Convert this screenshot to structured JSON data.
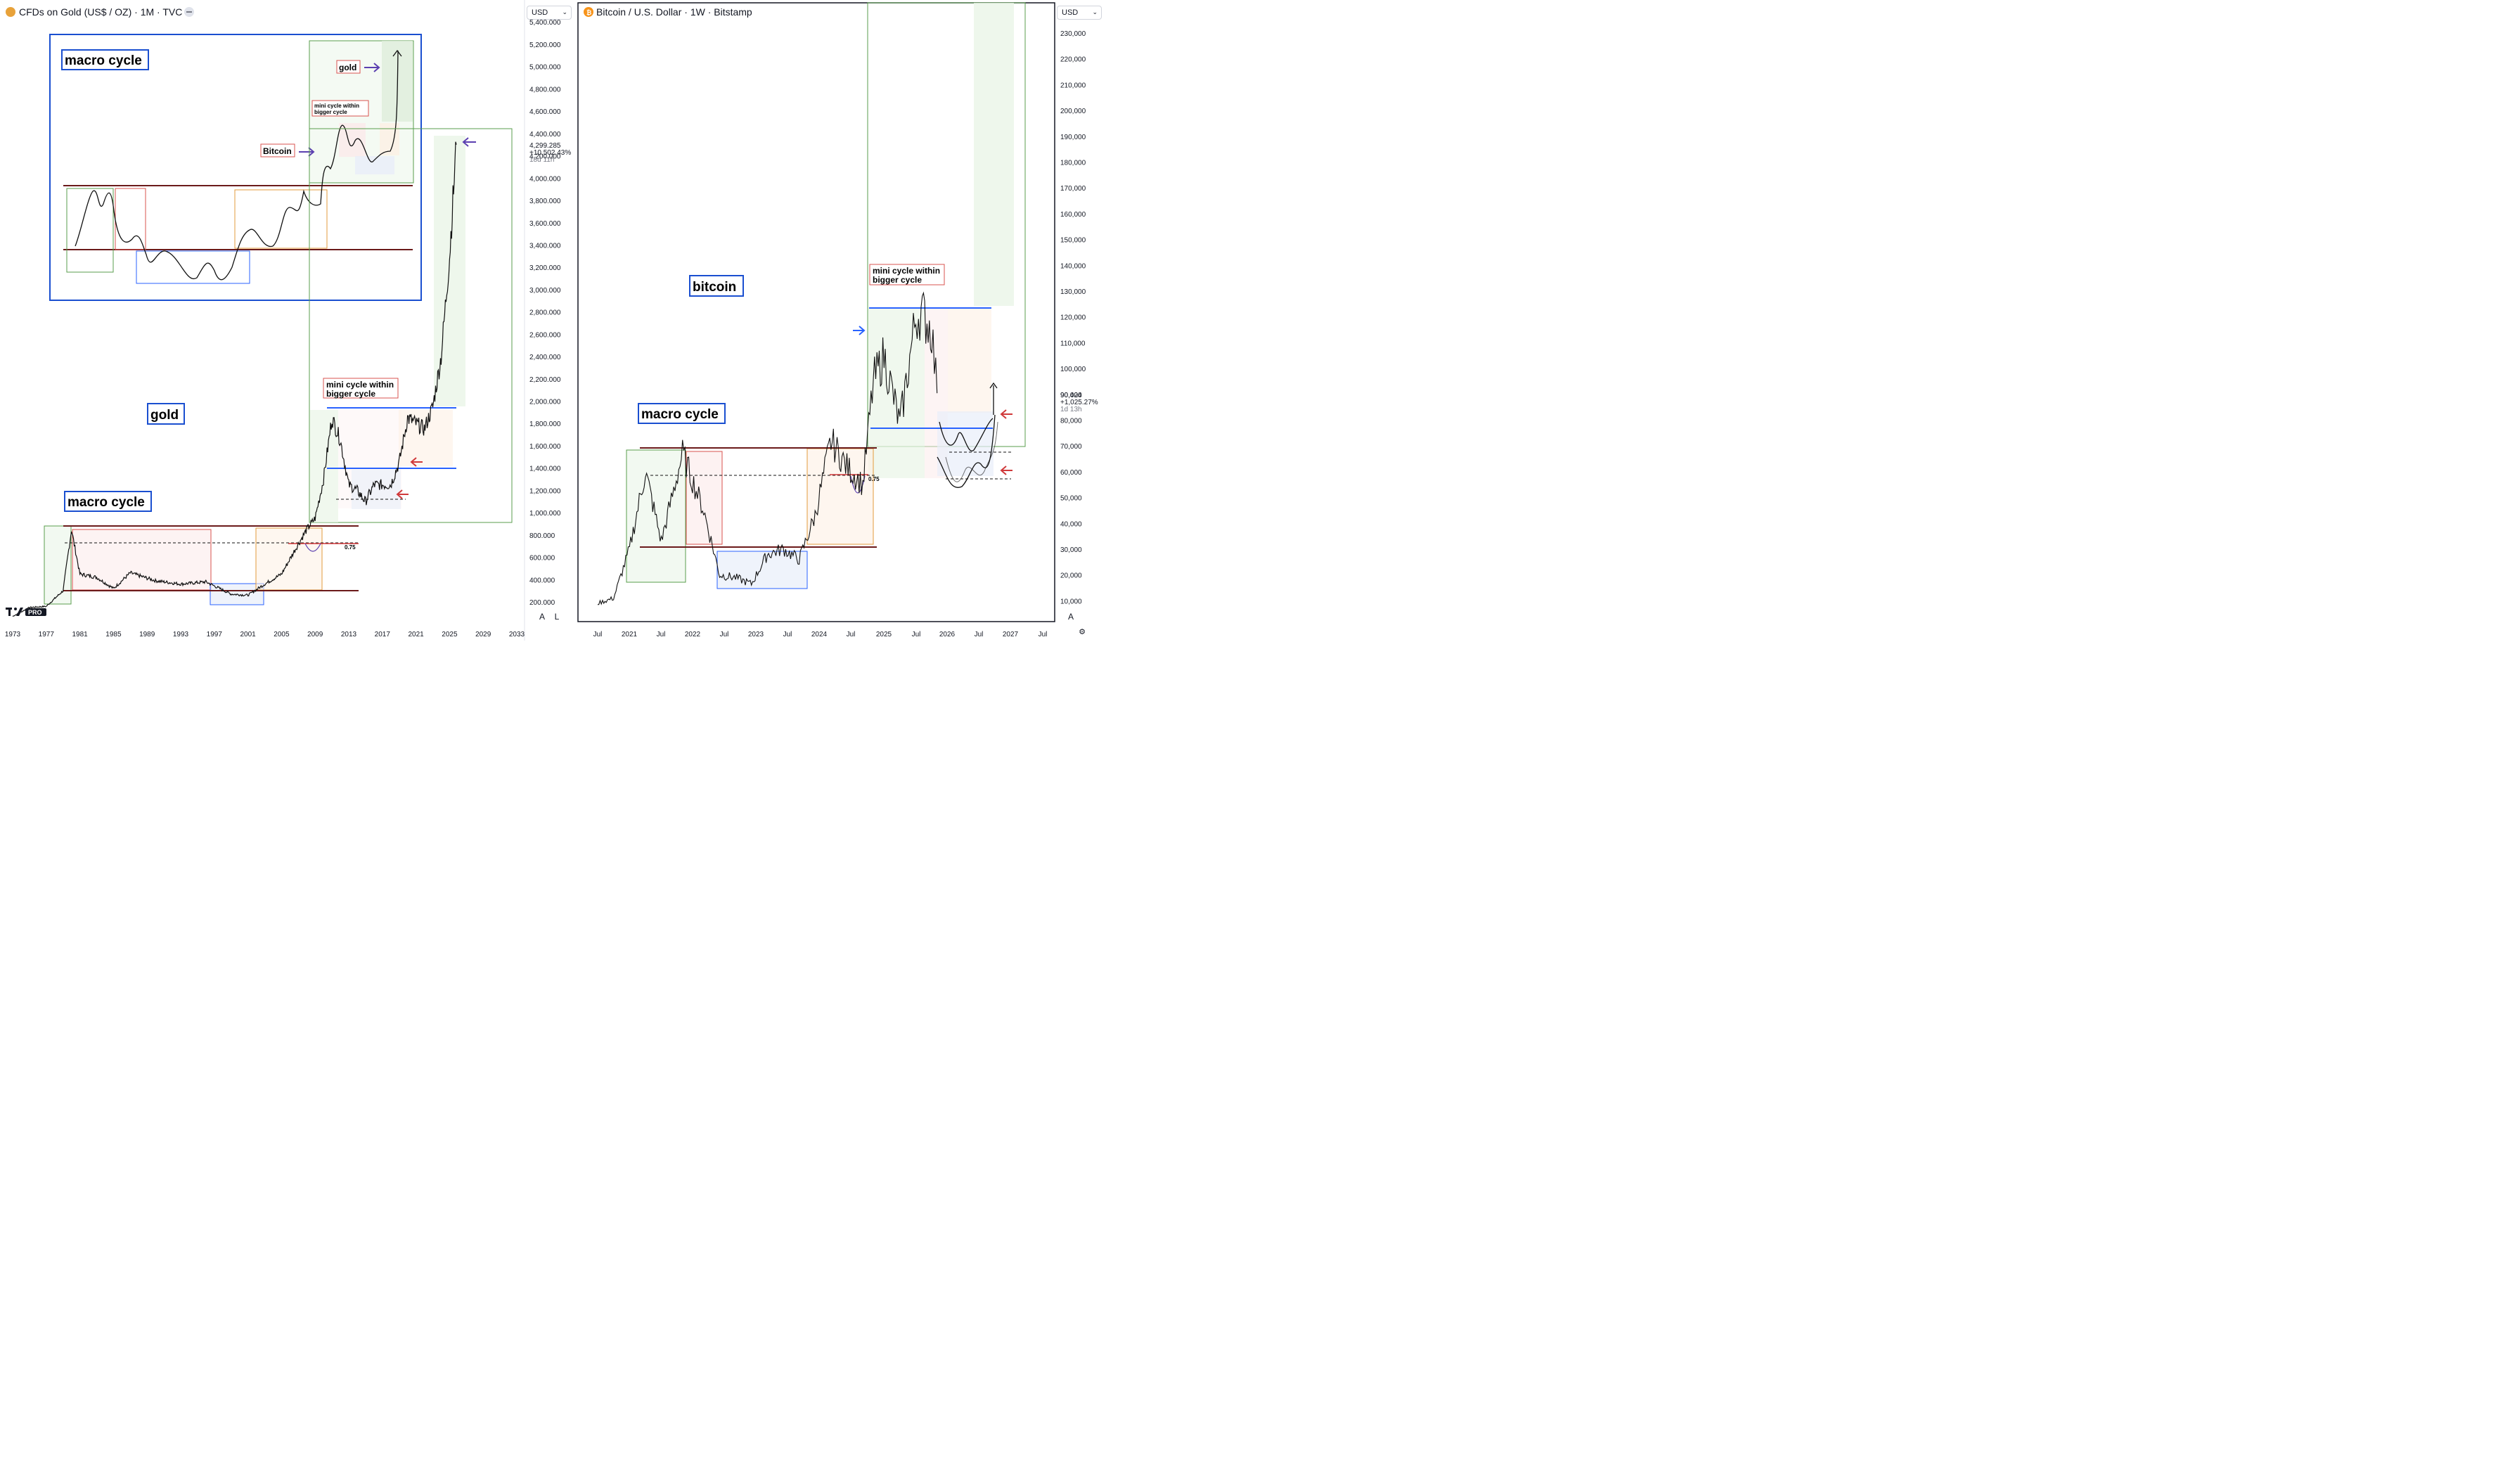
{
  "left_panel": {
    "symbol_icon": "gold-coin-icon",
    "title": "CFDs on Gold (US$ / OZ) · 1M · TVC",
    "currency_select": "USD",
    "price_label": "4,299.285",
    "change_label": "+10,502.43%",
    "countdown_label": "18d 11h",
    "y_ticks": [
      "5,200.000",
      "5,000.000",
      "4,800.000",
      "4,600.000",
      "4,400.000",
      "4,200.000",
      "4,000.000",
      "3,800.000",
      "3,600.000",
      "3,400.000",
      "3,200.000",
      "3,000.000",
      "2,800.000",
      "2,600.000",
      "2,400.000",
      "2,200.000",
      "2,000.000",
      "1,800.000",
      "1,600.000",
      "1,400.000",
      "1,200.000",
      "1,000.000",
      "800.000",
      "600.000",
      "400.000",
      "200.000"
    ],
    "y_top_partial": "5,400.000",
    "x_ticks": [
      "1973",
      "1977",
      "1981",
      "1985",
      "1989",
      "1993",
      "1997",
      "2001",
      "2005",
      "2009",
      "2013",
      "2017",
      "2021",
      "2025",
      "2029",
      "2033"
    ],
    "annotations": {
      "macro_cycle_inset": "macro cycle",
      "gold_inset": "gold",
      "bitcoin_inset": "Bitcoin",
      "mini_cycle_inset_1": "mini cycle within",
      "mini_cycle_inset_2": "bigger cycle",
      "gold_label": "gold",
      "mini_cycle_1": "mini cycle within",
      "mini_cycle_2": "bigger cycle",
      "macro_cycle_bottom": "macro cycle",
      "fib_level": "0.75"
    },
    "auto_button": "A",
    "log_button": "L",
    "logo_text": "PRO"
  },
  "right_panel": {
    "symbol_icon": "bitcoin-icon",
    "title": "Bitcoin / U.S. Dollar · 1W · Bitstamp",
    "currency_select": "USD",
    "price_label": "90,424",
    "change_label": "+1,025.27%",
    "countdown_label": "1d 13h",
    "y_ticks": [
      "230,000",
      "220,000",
      "210,000",
      "200,000",
      "190,000",
      "180,000",
      "170,000",
      "160,000",
      "150,000",
      "140,000",
      "130,000",
      "120,000",
      "110,000",
      "100,000",
      "90,000",
      "80,000",
      "70,000",
      "60,000",
      "50,000",
      "40,000",
      "30,000",
      "20,000",
      "10,000"
    ],
    "x_ticks": [
      "Jul",
      "2021",
      "Jul",
      "2022",
      "Jul",
      "2023",
      "Jul",
      "2024",
      "Jul",
      "2025",
      "Jul",
      "2026",
      "Jul",
      "2027",
      "Jul"
    ],
    "annotations": {
      "bitcoin_label": "bitcoin",
      "mini_cycle_1": "mini cycle within",
      "mini_cycle_2": "bigger cycle",
      "macro_cycle": "macro cycle",
      "fib_level": "0.75"
    },
    "auto_button": "A",
    "settings_icon": "gear-icon"
  },
  "colors": {
    "gold_icon": "#e8a23a",
    "bitcoin_icon": "#f7931a",
    "frame_blue": "#1a4fd0",
    "line_blue": "#2962ff",
    "support_maroon": "#6b1a1a",
    "box_green": "#5a9e4d",
    "box_red": "#d9534f",
    "box_orange": "#e39b3c",
    "arrow_purple": "#5b3fb0",
    "arrow_red": "#d0393a",
    "arrow_blue": "#2962ff"
  },
  "chart_data": [
    {
      "type": "line",
      "title": "CFDs on Gold (US$ / OZ) · 1M · TVC",
      "x_unit": "year",
      "ylim": [
        200,
        5400
      ],
      "series": [
        {
          "x": [
            1973,
            1975,
            1977,
            1979,
            1980,
            1981,
            1983,
            1985,
            1987,
            1990,
            1993,
            1996,
            1999,
            2001,
            2003,
            2005,
            2007,
            2008,
            2009,
            2010,
            2011,
            2012,
            2013,
            2014,
            2015,
            2016,
            2017,
            2018,
            2019,
            2020,
            2021,
            2022,
            2023,
            2024,
            2025,
            2025.8
          ],
          "y": [
            70,
            150,
            160,
            300,
            850,
            450,
            420,
            320,
            460,
            390,
            360,
            380,
            270,
            260,
            360,
            450,
            720,
            850,
            950,
            1300,
            1850,
            1650,
            1250,
            1200,
            1100,
            1250,
            1250,
            1250,
            1450,
            1850,
            1800,
            1750,
            1950,
            2400,
            3300,
            4300
          ]
        }
      ],
      "levels": {
        "upper_support": 850,
        "lower_support": 250,
        "fib_075": 720,
        "mini_upper": 1920,
        "mini_mid": 1380,
        "mini_low": 1150
      },
      "grid": false
    },
    {
      "type": "line",
      "title": "Bitcoin / U.S. Dollar · 1W · Bitstamp",
      "x_unit": "date",
      "ylim": [
        5000,
        235000
      ],
      "series": [
        {
          "x": [
            "2020-07",
            "2020-10",
            "2021-01",
            "2021-04",
            "2021-07",
            "2021-11",
            "2022-03",
            "2022-06",
            "2022-09",
            "2022-12",
            "2023-03",
            "2023-06",
            "2023-09",
            "2023-12",
            "2024-03",
            "2024-06",
            "2024-09",
            "2024-11",
            "2025-01",
            "2025-04",
            "2025-07",
            "2025-08",
            "2025-10",
            "2025-11"
          ],
          "y": [
            9000,
            11000,
            30000,
            60000,
            33000,
            67000,
            45000,
            20000,
            19000,
            16500,
            28000,
            30000,
            26000,
            43000,
            72000,
            62000,
            55000,
            95000,
            105000,
            78000,
            120000,
            122000,
            115000,
            90424
          ]
        }
      ],
      "levels": {
        "upper_support": 69000,
        "lower_support": 31000,
        "fib_075": 57000,
        "mini_top": 124000,
        "mini_low": 77000
      },
      "grid": false
    }
  ]
}
